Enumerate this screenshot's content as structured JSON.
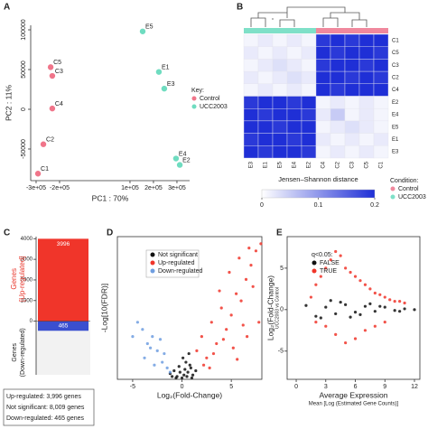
{
  "chart_data": [
    {
      "type": "scatter",
      "label": "A",
      "xlabel": "PC1 : 70%",
      "ylabel": "PC2 : 11%",
      "xlim": [
        -323000,
        354000
      ],
      "ylim": [
        -89800,
        105700
      ],
      "xticks": [
        {
          "value": -300000,
          "label": "-3e+05"
        },
        {
          "value": -200000,
          "label": "-2e+05"
        },
        {
          "value": 100000,
          "label": "1e+05"
        },
        {
          "value": 200000,
          "label": "2e+05"
        },
        {
          "value": 300000,
          "label": "3e+05"
        }
      ],
      "yticks": [
        -50000,
        0,
        50000,
        100000
      ],
      "legend_title": "Key:",
      "series": [
        {
          "name": "Control",
          "color": "#f0758a",
          "x": [
            -292000,
            -269000,
            -231000,
            -231000,
            -238000
          ],
          "values": [
            -81000,
            -44000,
            42000,
            1000,
            53000
          ],
          "labels": [
            "C1",
            "C2",
            "C3",
            "C4",
            "C5"
          ]
        },
        {
          "name": "UCC2003",
          "color": "#6fdcc0",
          "x": [
            154000,
            223000,
            246000,
            296000,
            312000
          ],
          "values": [
            98000,
            47000,
            26000,
            -62000,
            -70000
          ],
          "labels": [
            "E5",
            "E1",
            "E3",
            "E4",
            "E2"
          ]
        }
      ]
    },
    {
      "type": "heatmap",
      "label": "B",
      "title": "Jensen–Shannon distance",
      "rows": [
        "C1",
        "C5",
        "C3",
        "C2",
        "C4",
        "E2",
        "E4",
        "E5",
        "E1",
        "E3"
      ],
      "columns": [
        "E3",
        "E1",
        "E5",
        "E4",
        "E2",
        "C4",
        "C2",
        "C3",
        "C5",
        "C1"
      ],
      "values": [
        [
          0.01,
          0.02,
          0.01,
          0.02,
          0.01,
          0.19,
          0.2,
          0.19,
          0.2,
          0.2
        ],
        [
          0.02,
          0.01,
          0.02,
          0.01,
          0.02,
          0.2,
          0.19,
          0.2,
          0.2,
          0.19
        ],
        [
          0.01,
          0.02,
          0.03,
          0.02,
          0.01,
          0.19,
          0.2,
          0.2,
          0.19,
          0.2
        ],
        [
          0.02,
          0.01,
          0.02,
          0.03,
          0.02,
          0.2,
          0.2,
          0.19,
          0.2,
          0.19
        ],
        [
          0.01,
          0.02,
          0.01,
          0.02,
          0.01,
          0.2,
          0.19,
          0.2,
          0.2,
          0.2
        ],
        [
          0.19,
          0.2,
          0.2,
          0.19,
          0.2,
          0.01,
          0.02,
          0.01,
          0.02,
          0.01
        ],
        [
          0.2,
          0.19,
          0.2,
          0.2,
          0.19,
          0.02,
          0.05,
          0.01,
          0.02,
          0.01
        ],
        [
          0.2,
          0.2,
          0.19,
          0.2,
          0.2,
          0.01,
          0.02,
          0.03,
          0.02,
          0.01
        ],
        [
          0.19,
          0.2,
          0.2,
          0.19,
          0.2,
          0.02,
          0.01,
          0.02,
          0.01,
          0.02
        ],
        [
          0.2,
          0.19,
          0.2,
          0.2,
          0.19,
          0.01,
          0.02,
          0.01,
          0.02,
          0.01
        ]
      ],
      "clim": [
        0,
        0.2
      ],
      "colorbar_ticks": [
        0,
        0.1,
        0.2
      ],
      "colors": [
        "#ffffff",
        "#1f2fd6"
      ],
      "legend_title": "Condition:",
      "conditions": [
        {
          "name": "Control",
          "color": "#f0889d"
        },
        {
          "name": "UCC2003",
          "color": "#7fe0c8"
        }
      ],
      "column_condition": [
        1,
        1,
        1,
        1,
        1,
        0,
        0,
        0,
        0,
        0
      ]
    },
    {
      "type": "bar",
      "label": "C",
      "values": [
        3996,
        -465
      ],
      "value_labels": [
        "3996",
        "465"
      ],
      "colors": [
        "#f0352a",
        "#3a4fcf"
      ],
      "ylim": [
        -2600,
        4100
      ],
      "yticks": [
        0,
        1000,
        2000,
        3000,
        4000
      ],
      "ylabel": [
        "Genes",
        "[Up-regulated]"
      ],
      "ylabel2": [
        "Genes",
        "(Down-regulated)"
      ],
      "summary": [
        "Up-regulated: 3,996 genes",
        "Not significant: 8,009 genes",
        "Down-regulated: 465 genes"
      ]
    },
    {
      "type": "scatter",
      "label": "D",
      "xlabel": "Log₂(Fold-Change)",
      "ylabel": "-Log[10(FDR)]",
      "xlim": [
        -6.55,
        8.1
      ],
      "ylim": [
        0,
        100
      ],
      "xticks": [
        -5,
        0,
        5
      ],
      "yticks": [],
      "series": [
        {
          "name": "Not significant",
          "color": "#111111",
          "x": [
            -1.2,
            -0.8,
            -0.5,
            -0.3,
            0,
            0.2,
            0.4,
            0.6,
            0.9,
            1.1,
            1.4,
            -0.6,
            0.1,
            0.5,
            0.8,
            -0.2,
            0.3,
            1.0,
            -1.0,
            0.7
          ],
          "values": [
            4,
            6,
            2,
            9,
            1,
            3,
            12,
            5,
            8,
            3,
            6,
            1,
            15,
            2,
            10,
            5,
            7,
            1,
            2,
            18
          ]
        },
        {
          "name": "Up-regulated",
          "color": "#f0352a",
          "x": [
            1.5,
            2,
            2.5,
            3,
            3.5,
            4,
            4.5,
            5,
            5.5,
            6,
            6.5,
            7,
            7.5,
            8,
            2.2,
            3.2,
            4.2,
            5.2,
            6.2,
            7.2,
            3.8,
            4.8,
            5.8,
            6.8,
            2.8,
            7.8,
            6.6,
            5.6
          ],
          "values": [
            20,
            30,
            15,
            40,
            25,
            50,
            35,
            45,
            60,
            55,
            70,
            80,
            90,
            95,
            10,
            18,
            28,
            22,
            38,
            65,
            62,
            75,
            85,
            92,
            8,
            40,
            30,
            14
          ]
        },
        {
          "name": "Down-regulated",
          "color": "#6f9ee0",
          "x": [
            -1.5,
            -2,
            -2.5,
            -3,
            -3.5,
            -4,
            -4.5,
            -1.8,
            -2.8,
            -3.8,
            -1.2,
            -2.2,
            -3.2,
            -5
          ],
          "values": [
            8,
            12,
            20,
            30,
            25,
            35,
            40,
            18,
            10,
            15,
            5,
            28,
            22,
            30
          ]
        }
      ]
    },
    {
      "type": "scatter",
      "label": "E",
      "xlabel": "Average Expression",
      "xlabel_sub": "Mean [Log (Estimated Gene Counts)]",
      "ylabel": "Log₂(Fold-Change)",
      "ylabel_sub": "UCC2003 vs Control",
      "xlim": [
        -0.92,
        12.55
      ],
      "ylim": [
        -8.4,
        8.8
      ],
      "xticks": [
        0,
        3,
        6,
        9,
        12
      ],
      "yticks": [
        -5,
        0,
        5
      ],
      "legend_title": "q<0.05:",
      "series": [
        {
          "name": "FALSE",
          "color": "#111111",
          "x": [
            1,
            2,
            3,
            4,
            5,
            6,
            7,
            8,
            9,
            10,
            11,
            12,
            2.5,
            4.5,
            6.5,
            8.5,
            10.5,
            3.5,
            5.5,
            7.5
          ],
          "values": [
            0.5,
            -0.8,
            0.3,
            -0.5,
            0.6,
            -0.3,
            0.4,
            -0.2,
            0.3,
            -0.1,
            0.1,
            0,
            -1,
            0.9,
            -0.6,
            0.4,
            -0.2,
            1.1,
            -0.9,
            0.7
          ]
        },
        {
          "name": "TRUE",
          "color": "#f0352a",
          "x": [
            1.5,
            2,
            2.5,
            3,
            3.5,
            4,
            4.5,
            5,
            5.5,
            6,
            6.5,
            7,
            7.5,
            8,
            8.5,
            9,
            9.5,
            10,
            3,
            4,
            5,
            6,
            7,
            8,
            2,
            9,
            10.5,
            11
          ],
          "values": [
            1.5,
            3,
            4,
            5,
            6,
            7,
            6.5,
            5,
            4.5,
            4,
            3.5,
            3,
            2.5,
            2,
            1.8,
            1.5,
            1.2,
            1,
            -2,
            -3,
            -4,
            -3.5,
            -2.5,
            -2,
            -1.5,
            -1.5,
            1,
            0.8
          ]
        }
      ]
    }
  ]
}
